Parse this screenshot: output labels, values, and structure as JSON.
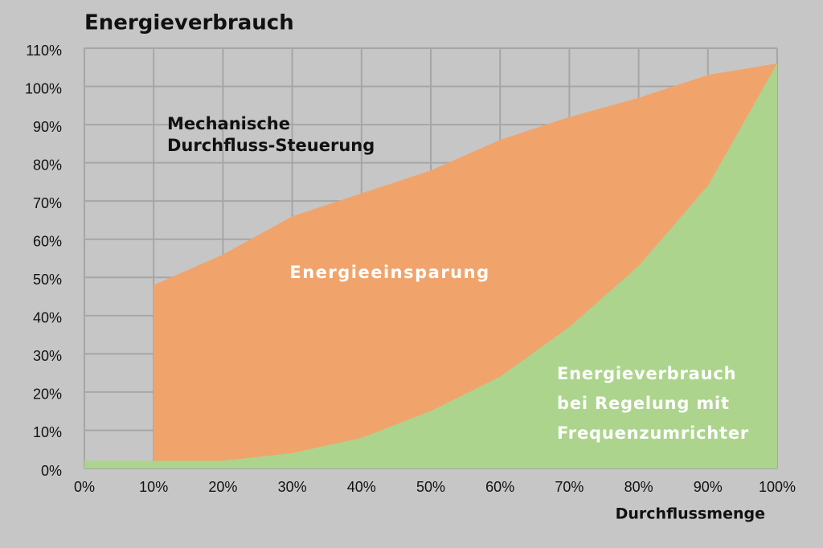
{
  "chart_data": {
    "type": "area",
    "title": "Energieverbrauch",
    "x_label": "Durchflussmenge",
    "x": [
      0,
      10,
      20,
      30,
      40,
      50,
      60,
      70,
      80,
      90,
      100
    ],
    "series": [
      {
        "color": "#f0a46c",
        "values": [
          null,
          48,
          56,
          66,
          72,
          78,
          86,
          92,
          97,
          103,
          106
        ]
      },
      {
        "color": "#acd48c",
        "values": [
          2,
          2,
          2,
          4,
          8,
          15,
          24,
          37,
          53,
          74,
          106
        ]
      }
    ],
    "xlim": [
      0,
      100
    ],
    "ylim": [
      0,
      110
    ],
    "xticks": [
      {
        "value": 0,
        "label": "0%"
      },
      {
        "value": 10,
        "label": "10%"
      },
      {
        "value": 20,
        "label": "20%"
      },
      {
        "value": 30,
        "label": "30%"
      },
      {
        "value": 40,
        "label": "40%"
      },
      {
        "value": 50,
        "label": "50%"
      },
      {
        "value": 60,
        "label": "60%"
      },
      {
        "value": 70,
        "label": "70%"
      },
      {
        "value": 80,
        "label": "80%"
      },
      {
        "value": 90,
        "label": "90%"
      },
      {
        "value": 100,
        "label": "100%"
      }
    ],
    "yticks": [
      {
        "value": 0,
        "label": "0%"
      },
      {
        "value": 10,
        "label": "10%"
      },
      {
        "value": 20,
        "label": "20%"
      },
      {
        "value": 30,
        "label": "30%"
      },
      {
        "value": 40,
        "label": "40%"
      },
      {
        "value": 50,
        "label": "50%"
      },
      {
        "value": 60,
        "label": "60%"
      },
      {
        "value": 70,
        "label": "70%"
      },
      {
        "value": 80,
        "label": "80%"
      },
      {
        "value": 90,
        "label": "90%"
      },
      {
        "value": 100,
        "label": "100%"
      },
      {
        "value": 110,
        "label": "110%"
      }
    ],
    "grid": true,
    "annotations": [
      {
        "lines": [
          "Mechanische",
          "Durchfluss-Steuerung"
        ],
        "color": "#111111"
      },
      {
        "lines": [
          "Energieeinsparung"
        ],
        "color": "#ffffff"
      },
      {
        "lines": [
          "Energieverbrauch",
          "bei Regelung mit",
          "Frequenzumrichter"
        ],
        "color": "#ffffff"
      }
    ]
  }
}
